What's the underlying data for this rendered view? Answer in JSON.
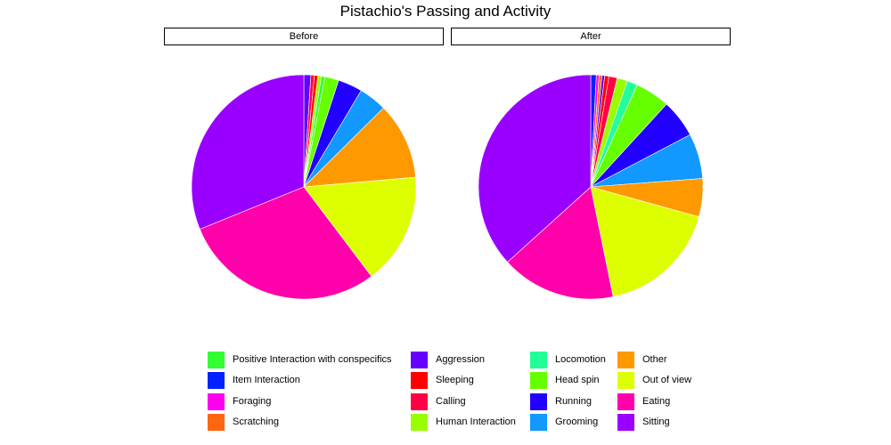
{
  "chart_data": {
    "type": "pie",
    "title": "Pistachio's Passing and Activity",
    "panels": [
      {
        "name": "Before",
        "slices": [
          {
            "category": "Aggression",
            "value": 1.0
          },
          {
            "category": "Calling",
            "value": 0.5
          },
          {
            "category": "Sleeping",
            "value": 0.5
          },
          {
            "category": "Human Interaction",
            "value": 0.5
          },
          {
            "category": "Positive Interaction with conspecifics",
            "value": 0.5
          },
          {
            "category": "Head spin",
            "value": 2.0
          },
          {
            "category": "Running",
            "value": 3.5
          },
          {
            "category": "Grooming",
            "value": 4.0
          },
          {
            "category": "Other",
            "value": 11.0
          },
          {
            "category": "Out of view",
            "value": 16.0
          },
          {
            "category": "Eating",
            "value": 29.0
          },
          {
            "category": "Sitting",
            "value": 31.0
          }
        ]
      },
      {
        "name": "After",
        "slices": [
          {
            "category": "Item Interaction",
            "value": 0.8
          },
          {
            "category": "Foraging",
            "value": 0.4
          },
          {
            "category": "Scratching",
            "value": 0.4
          },
          {
            "category": "Aggression",
            "value": 0.4
          },
          {
            "category": "Sleeping",
            "value": 0.6
          },
          {
            "category": "Calling",
            "value": 1.2
          },
          {
            "category": "Human Interaction",
            "value": 1.5
          },
          {
            "category": "Locomotion",
            "value": 1.5
          },
          {
            "category": "Head spin",
            "value": 5.0
          },
          {
            "category": "Running",
            "value": 5.5
          },
          {
            "category": "Grooming",
            "value": 6.5
          },
          {
            "category": "Other",
            "value": 5.5
          },
          {
            "category": "Out of view",
            "value": 17.5
          },
          {
            "category": "Eating",
            "value": 16.5
          },
          {
            "category": "Sitting",
            "value": 36.7
          }
        ]
      }
    ],
    "legend": {
      "placement": "bottom",
      "entries": [
        {
          "label": "Positive Interaction with conspecifics",
          "color": "#33FF33"
        },
        {
          "label": "Item Interaction",
          "color": "#0022FF"
        },
        {
          "label": "Foraging",
          "color": "#FF00EE"
        },
        {
          "label": "Scratching",
          "color": "#FF6611"
        },
        {
          "label": "Aggression",
          "color": "#6600FF"
        },
        {
          "label": "Sleeping",
          "color": "#FF0000"
        },
        {
          "label": "Calling",
          "color": "#FF0044"
        },
        {
          "label": "Human Interaction",
          "color": "#99FF00"
        },
        {
          "label": "Locomotion",
          "color": "#22FF99"
        },
        {
          "label": "Head spin",
          "color": "#66FF00"
        },
        {
          "label": "Running",
          "color": "#2200FF"
        },
        {
          "label": "Grooming",
          "color": "#1199FF"
        },
        {
          "label": "Other",
          "color": "#FF9900"
        },
        {
          "label": "Out of view",
          "color": "#DDFF00"
        },
        {
          "label": "Eating",
          "color": "#FF00AA"
        },
        {
          "label": "Sitting",
          "color": "#9900FF"
        }
      ]
    }
  }
}
